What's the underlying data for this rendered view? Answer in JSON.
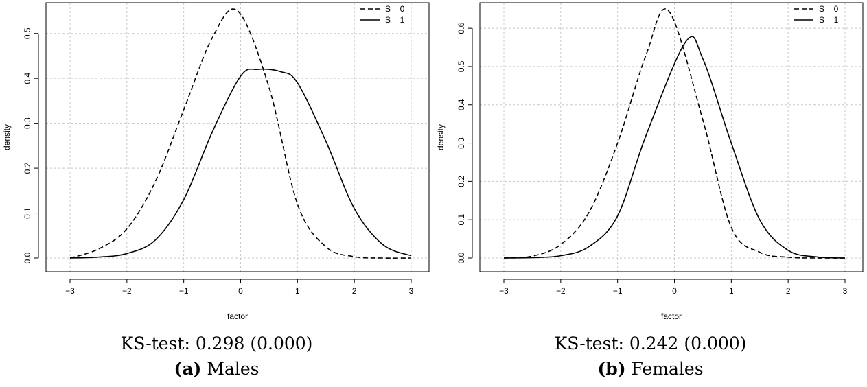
{
  "chart_data": [
    {
      "type": "line",
      "xlabel": "factor",
      "ylabel": "density",
      "xlim": [
        -3,
        3
      ],
      "ylim": [
        0,
        0.55
      ],
      "xticks": [
        -3,
        -2,
        -1,
        0,
        1,
        2,
        3
      ],
      "yticks": [
        0.0,
        0.1,
        0.2,
        0.3,
        0.4,
        0.5
      ],
      "xtick_labels": [
        "−3",
        "−2",
        "−1",
        "0",
        "1",
        "2",
        "3"
      ],
      "ytick_labels": [
        "0.0",
        "0.1",
        "0.2",
        "0.3",
        "0.4",
        "0.5"
      ],
      "grid": true,
      "legend_position": "top-right",
      "series": [
        {
          "name": "S = 0",
          "style": "dashed",
          "x": [
            -3,
            -2.5,
            -2,
            -1.5,
            -1,
            -0.5,
            -0.05,
            0.5,
            1,
            1.5,
            2,
            2.5,
            3
          ],
          "y": [
            0.0,
            0.02,
            0.065,
            0.17,
            0.33,
            0.49,
            0.55,
            0.38,
            0.12,
            0.025,
            0.003,
            0.0,
            0.0
          ]
        },
        {
          "name": "S = 1",
          "style": "solid",
          "x": [
            -3,
            -2.5,
            -2,
            -1.5,
            -1,
            -0.5,
            0,
            0.3,
            0.7,
            1,
            1.5,
            2,
            2.5,
            3
          ],
          "y": [
            0.0,
            0.002,
            0.01,
            0.04,
            0.13,
            0.28,
            0.405,
            0.42,
            0.415,
            0.39,
            0.26,
            0.11,
            0.03,
            0.005
          ]
        }
      ],
      "caption": {
        "test": "KS-test: 0.298 (0.000)",
        "letter": "(a)",
        "label": "Males"
      }
    },
    {
      "type": "line",
      "xlabel": "factor",
      "ylabel": "density",
      "xlim": [
        -3,
        3
      ],
      "ylim": [
        0,
        0.645
      ],
      "xticks": [
        -3,
        -2,
        -1,
        0,
        1,
        2,
        3
      ],
      "yticks": [
        0.0,
        0.1,
        0.2,
        0.3,
        0.4,
        0.5,
        0.6
      ],
      "xtick_labels": [
        "−3",
        "−2",
        "−1",
        "0",
        "1",
        "2",
        "3"
      ],
      "ytick_labels": [
        "0.0",
        "0.1",
        "0.2",
        "0.3",
        "0.4",
        "0.5",
        "0.6"
      ],
      "grid": true,
      "legend_position": "top-right",
      "series": [
        {
          "name": "S = 0",
          "style": "dashed",
          "x": [
            -3,
            -2.5,
            -2,
            -1.5,
            -1,
            -0.5,
            -0.1,
            0.5,
            1,
            1.5,
            2,
            2.5,
            3
          ],
          "y": [
            0.0,
            0.005,
            0.035,
            0.12,
            0.3,
            0.53,
            0.645,
            0.36,
            0.08,
            0.015,
            0.002,
            0.0,
            0.0
          ]
        },
        {
          "name": "S = 1",
          "style": "solid",
          "x": [
            -3,
            -2.5,
            -2,
            -1.5,
            -1,
            -0.5,
            0.2,
            0.5,
            1,
            1.5,
            2,
            2.5,
            3
          ],
          "y": [
            0.0,
            0.001,
            0.006,
            0.03,
            0.11,
            0.32,
            0.565,
            0.52,
            0.3,
            0.1,
            0.02,
            0.003,
            0.0
          ]
        }
      ],
      "caption": {
        "test": "KS-test: 0.242 (0.000)",
        "letter": "(b)",
        "label": "Females"
      }
    }
  ]
}
